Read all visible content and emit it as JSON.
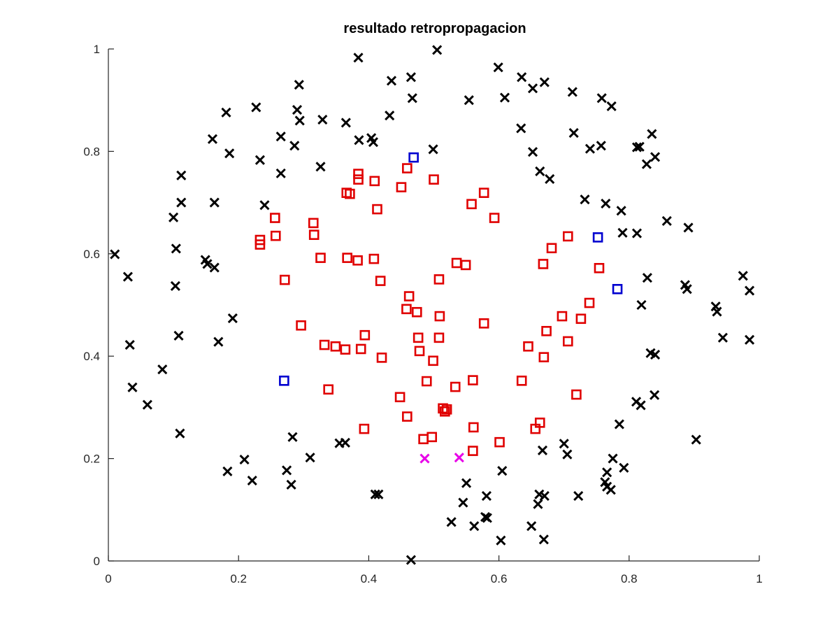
{
  "chart_data": {
    "type": "scatter",
    "title": "resultado retropropagacion",
    "xlabel": "",
    "ylabel": "",
    "xlim": [
      0,
      1
    ],
    "ylim": [
      0,
      1
    ],
    "grid": false,
    "xticks": [
      {
        "value": 0,
        "label": "0"
      },
      {
        "value": 0.2,
        "label": "0.2"
      },
      {
        "value": 0.4,
        "label": "0.4"
      },
      {
        "value": 0.6,
        "label": "0.6"
      },
      {
        "value": 0.8,
        "label": "0.8"
      },
      {
        "value": 1,
        "label": "1"
      }
    ],
    "yticks": [
      {
        "value": 0,
        "label": "0"
      },
      {
        "value": 0.2,
        "label": "0.2"
      },
      {
        "value": 0.4,
        "label": "0.4"
      },
      {
        "value": 0.6,
        "label": "0.6"
      },
      {
        "value": 0.8,
        "label": "0.8"
      },
      {
        "value": 1,
        "label": "1"
      }
    ],
    "series": [
      {
        "marker": "x",
        "color": "#000000",
        "points": [
          [
            0.505,
            0.998
          ],
          [
            0.384,
            0.983
          ],
          [
            0.599,
            0.964
          ],
          [
            0.465,
            0.945
          ],
          [
            0.635,
            0.945
          ],
          [
            0.435,
            0.938
          ],
          [
            0.67,
            0.935
          ],
          [
            0.293,
            0.93
          ],
          [
            0.652,
            0.923
          ],
          [
            0.713,
            0.916
          ],
          [
            0.467,
            0.904
          ],
          [
            0.758,
            0.904
          ],
          [
            0.554,
            0.9
          ],
          [
            0.609,
            0.905
          ],
          [
            0.773,
            0.888
          ],
          [
            0.227,
            0.886
          ],
          [
            0.29,
            0.881
          ],
          [
            0.181,
            0.876
          ],
          [
            0.432,
            0.87
          ],
          [
            0.329,
            0.862
          ],
          [
            0.294,
            0.86
          ],
          [
            0.365,
            0.856
          ],
          [
            0.634,
            0.845
          ],
          [
            0.715,
            0.836
          ],
          [
            0.835,
            0.834
          ],
          [
            0.265,
            0.829
          ],
          [
            0.16,
            0.824
          ],
          [
            0.404,
            0.826
          ],
          [
            0.385,
            0.822
          ],
          [
            0.407,
            0.818
          ],
          [
            0.286,
            0.811
          ],
          [
            0.757,
            0.811
          ],
          [
            0.74,
            0.805
          ],
          [
            0.812,
            0.808
          ],
          [
            0.816,
            0.809
          ],
          [
            0.499,
            0.804
          ],
          [
            0.652,
            0.799
          ],
          [
            0.186,
            0.796
          ],
          [
            0.84,
            0.789
          ],
          [
            0.233,
            0.783
          ],
          [
            0.827,
            0.775
          ],
          [
            0.326,
            0.77
          ],
          [
            0.663,
            0.761
          ],
          [
            0.265,
            0.757
          ],
          [
            0.112,
            0.753
          ],
          [
            0.678,
            0.746
          ],
          [
            0.732,
            0.706
          ],
          [
            0.112,
            0.7
          ],
          [
            0.163,
            0.7
          ],
          [
            0.24,
            0.695
          ],
          [
            0.764,
            0.698
          ],
          [
            0.788,
            0.684
          ],
          [
            0.1,
            0.671
          ],
          [
            0.858,
            0.664
          ],
          [
            0.891,
            0.651
          ],
          [
            0.79,
            0.641
          ],
          [
            0.812,
            0.64
          ],
          [
            0.104,
            0.61
          ],
          [
            0.01,
            0.599
          ],
          [
            0.149,
            0.588
          ],
          [
            0.152,
            0.58
          ],
          [
            0.163,
            0.573
          ],
          [
            0.03,
            0.555
          ],
          [
            0.828,
            0.553
          ],
          [
            0.975,
            0.557
          ],
          [
            0.886,
            0.539
          ],
          [
            0.103,
            0.537
          ],
          [
            0.889,
            0.531
          ],
          [
            0.985,
            0.528
          ],
          [
            0.933,
            0.497
          ],
          [
            0.819,
            0.5
          ],
          [
            0.935,
            0.487
          ],
          [
            0.191,
            0.474
          ],
          [
            0.944,
            0.436
          ],
          [
            0.985,
            0.432
          ],
          [
            0.108,
            0.44
          ],
          [
            0.033,
            0.422
          ],
          [
            0.169,
            0.428
          ],
          [
            0.833,
            0.406
          ],
          [
            0.84,
            0.403
          ],
          [
            0.083,
            0.374
          ],
          [
            0.037,
            0.339
          ],
          [
            0.06,
            0.305
          ],
          [
            0.839,
            0.324
          ],
          [
            0.811,
            0.311
          ],
          [
            0.818,
            0.304
          ],
          [
            0.785,
            0.267
          ],
          [
            0.11,
            0.249
          ],
          [
            0.283,
            0.242
          ],
          [
            0.903,
            0.237
          ],
          [
            0.355,
            0.23
          ],
          [
            0.364,
            0.231
          ],
          [
            0.7,
            0.229
          ],
          [
            0.667,
            0.216
          ],
          [
            0.705,
            0.208
          ],
          [
            0.209,
            0.198
          ],
          [
            0.31,
            0.202
          ],
          [
            0.775,
            0.2
          ],
          [
            0.183,
            0.175
          ],
          [
            0.274,
            0.177
          ],
          [
            0.605,
            0.176
          ],
          [
            0.766,
            0.173
          ],
          [
            0.792,
            0.182
          ],
          [
            0.221,
            0.157
          ],
          [
            0.281,
            0.149
          ],
          [
            0.55,
            0.152
          ],
          [
            0.763,
            0.154
          ],
          [
            0.766,
            0.145
          ],
          [
            0.772,
            0.139
          ],
          [
            0.41,
            0.13
          ],
          [
            0.415,
            0.13
          ],
          [
            0.581,
            0.127
          ],
          [
            0.662,
            0.13
          ],
          [
            0.67,
            0.127
          ],
          [
            0.722,
            0.127
          ],
          [
            0.545,
            0.114
          ],
          [
            0.66,
            0.111
          ],
          [
            0.579,
            0.086
          ],
          [
            0.582,
            0.084
          ],
          [
            0.527,
            0.076
          ],
          [
            0.562,
            0.068
          ],
          [
            0.65,
            0.068
          ],
          [
            0.603,
            0.04
          ],
          [
            0.669,
            0.042
          ],
          [
            0.465,
            0.002
          ]
        ]
      },
      {
        "marker": "square",
        "color": "#e00000",
        "points": [
          [
            0.5,
            0.745
          ],
          [
            0.384,
            0.756
          ],
          [
            0.459,
            0.767
          ],
          [
            0.384,
            0.745
          ],
          [
            0.409,
            0.742
          ],
          [
            0.45,
            0.73
          ],
          [
            0.577,
            0.719
          ],
          [
            0.366,
            0.719
          ],
          [
            0.371,
            0.717
          ],
          [
            0.558,
            0.697
          ],
          [
            0.413,
            0.687
          ],
          [
            0.593,
            0.67
          ],
          [
            0.256,
            0.67
          ],
          [
            0.315,
            0.66
          ],
          [
            0.316,
            0.637
          ],
          [
            0.257,
            0.635
          ],
          [
            0.233,
            0.627
          ],
          [
            0.233,
            0.618
          ],
          [
            0.706,
            0.634
          ],
          [
            0.681,
            0.611
          ],
          [
            0.326,
            0.592
          ],
          [
            0.367,
            0.592
          ],
          [
            0.383,
            0.587
          ],
          [
            0.408,
            0.59
          ],
          [
            0.535,
            0.582
          ],
          [
            0.549,
            0.578
          ],
          [
            0.668,
            0.58
          ],
          [
            0.754,
            0.572
          ],
          [
            0.271,
            0.549
          ],
          [
            0.418,
            0.547
          ],
          [
            0.508,
            0.55
          ],
          [
            0.462,
            0.517
          ],
          [
            0.458,
            0.492
          ],
          [
            0.474,
            0.486
          ],
          [
            0.509,
            0.478
          ],
          [
            0.739,
            0.504
          ],
          [
            0.697,
            0.478
          ],
          [
            0.726,
            0.473
          ],
          [
            0.577,
            0.464
          ],
          [
            0.296,
            0.46
          ],
          [
            0.394,
            0.441
          ],
          [
            0.476,
            0.436
          ],
          [
            0.508,
            0.436
          ],
          [
            0.673,
            0.449
          ],
          [
            0.706,
            0.429
          ],
          [
            0.332,
            0.422
          ],
          [
            0.349,
            0.419
          ],
          [
            0.364,
            0.413
          ],
          [
            0.388,
            0.414
          ],
          [
            0.478,
            0.41
          ],
          [
            0.645,
            0.419
          ],
          [
            0.42,
            0.397
          ],
          [
            0.499,
            0.391
          ],
          [
            0.669,
            0.398
          ],
          [
            0.338,
            0.335
          ],
          [
            0.489,
            0.351
          ],
          [
            0.533,
            0.34
          ],
          [
            0.56,
            0.353
          ],
          [
            0.635,
            0.352
          ],
          [
            0.719,
            0.325
          ],
          [
            0.448,
            0.32
          ],
          [
            0.514,
            0.298
          ],
          [
            0.52,
            0.296
          ],
          [
            0.517,
            0.292
          ],
          [
            0.459,
            0.282
          ],
          [
            0.663,
            0.27
          ],
          [
            0.393,
            0.258
          ],
          [
            0.561,
            0.261
          ],
          [
            0.656,
            0.258
          ],
          [
            0.484,
            0.238
          ],
          [
            0.497,
            0.242
          ],
          [
            0.601,
            0.232
          ],
          [
            0.56,
            0.215
          ]
        ]
      },
      {
        "marker": "square",
        "color": "#0000d0",
        "points": [
          [
            0.469,
            0.788
          ],
          [
            0.752,
            0.632
          ],
          [
            0.782,
            0.531
          ],
          [
            0.27,
            0.352
          ]
        ]
      },
      {
        "marker": "x",
        "color": "#e800e8",
        "points": [
          [
            0.486,
            0.2
          ],
          [
            0.539,
            0.202
          ]
        ]
      }
    ]
  }
}
